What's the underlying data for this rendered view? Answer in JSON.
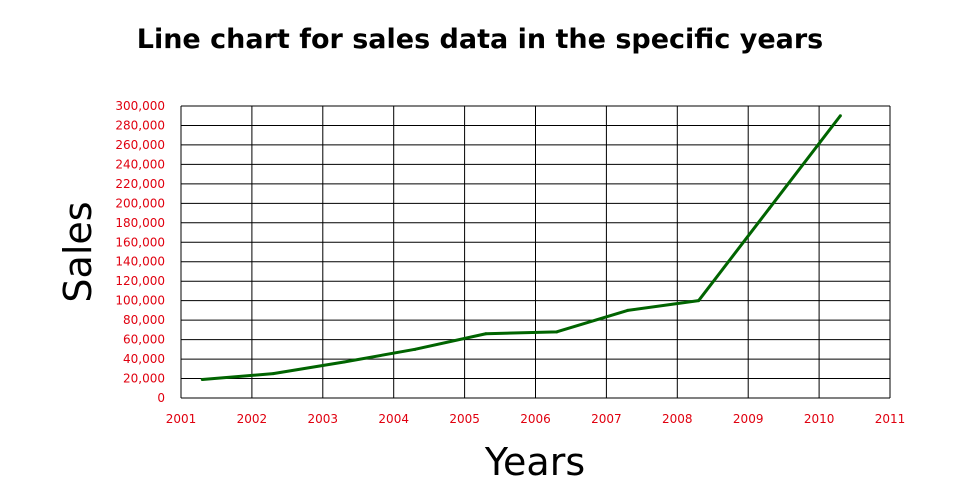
{
  "chart_data": {
    "type": "line",
    "title": "Line chart for sales data in the specific years",
    "xlabel": "Years",
    "ylabel": "Sales",
    "x_ticks": [
      "2001",
      "2002",
      "2003",
      "2004",
      "2005",
      "2006",
      "2007",
      "2008",
      "2009",
      "2010",
      "2011"
    ],
    "y_ticks": [
      "0",
      "20,000",
      "40,000",
      "60,000",
      "80,000",
      "100,000",
      "120,000",
      "140,000",
      "160,000",
      "180,000",
      "200,000",
      "220,000",
      "240,000",
      "260,000",
      "280,000",
      "300,000"
    ],
    "xlim": [
      2001,
      2011
    ],
    "ylim": [
      0,
      300000
    ],
    "grid": true,
    "legend": "none",
    "series": [
      {
        "x": [
          2001.3,
          2002.3,
          2003.3,
          2004.3,
          2005.3,
          2006.3,
          2007.3,
          2008.3,
          2009.3,
          2010.3
        ],
        "y": [
          19000,
          25000,
          37000,
          50000,
          66000,
          68000,
          90000,
          100000,
          195000,
          290000
        ]
      }
    ],
    "colors": {
      "line": "#006400",
      "tick_text": "#e0000f",
      "grid": "#000000"
    }
  }
}
